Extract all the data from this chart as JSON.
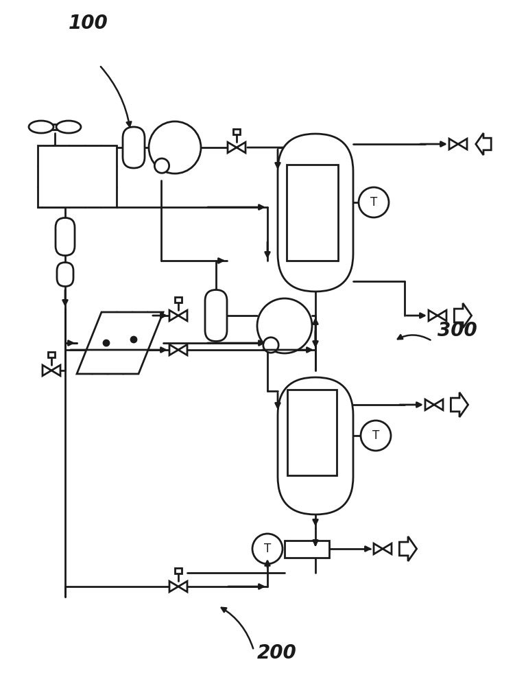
{
  "bg_color": "#ffffff",
  "line_color": "#1a1a1a",
  "lw": 2.0,
  "label_100": "100",
  "label_200": "200",
  "label_300": "300"
}
